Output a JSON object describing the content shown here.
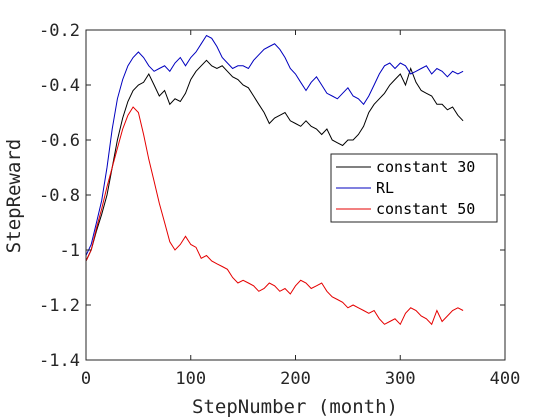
{
  "chart_data": {
    "type": "line",
    "title": "",
    "xlabel": "StepNumber (month)",
    "ylabel": "StepReward",
    "xlim": [
      0,
      400
    ],
    "ylim": [
      -1.4,
      -0.2
    ],
    "xticks": [
      0,
      100,
      200,
      300,
      400
    ],
    "yticks": [
      -1.4,
      -1.2,
      -1,
      -0.8,
      -0.6,
      -0.4,
      -0.2
    ],
    "xtick_labels": [
      "0",
      "100",
      "200",
      "300",
      "400"
    ],
    "ytick_labels": [
      "-1.4",
      "-1.2",
      "-1",
      "-0.8",
      "-0.6",
      "-0.4",
      "-0.2"
    ],
    "grid": false,
    "legend_position": "right",
    "series": [
      {
        "name": "constant 30",
        "color": "#000000",
        "x": [
          0,
          5,
          10,
          15,
          20,
          25,
          30,
          35,
          40,
          45,
          50,
          55,
          60,
          65,
          70,
          75,
          80,
          85,
          90,
          95,
          100,
          105,
          110,
          115,
          120,
          125,
          130,
          135,
          140,
          145,
          150,
          155,
          160,
          165,
          170,
          175,
          180,
          185,
          190,
          195,
          200,
          205,
          210,
          215,
          220,
          225,
          230,
          235,
          240,
          245,
          250,
          255,
          260,
          265,
          270,
          275,
          280,
          285,
          290,
          295,
          300,
          305,
          310,
          315,
          320,
          325,
          330,
          335,
          340,
          345,
          350,
          355,
          360
        ],
        "y": [
          -1.04,
          -1.0,
          -0.93,
          -0.87,
          -0.8,
          -0.7,
          -0.6,
          -0.52,
          -0.46,
          -0.42,
          -0.4,
          -0.39,
          -0.36,
          -0.4,
          -0.44,
          -0.42,
          -0.47,
          -0.45,
          -0.46,
          -0.43,
          -0.38,
          -0.35,
          -0.33,
          -0.31,
          -0.33,
          -0.34,
          -0.33,
          -0.35,
          -0.37,
          -0.38,
          -0.4,
          -0.41,
          -0.44,
          -0.47,
          -0.5,
          -0.54,
          -0.52,
          -0.51,
          -0.5,
          -0.53,
          -0.54,
          -0.55,
          -0.53,
          -0.55,
          -0.56,
          -0.58,
          -0.56,
          -0.6,
          -0.61,
          -0.62,
          -0.6,
          -0.6,
          -0.58,
          -0.55,
          -0.5,
          -0.47,
          -0.45,
          -0.43,
          -0.4,
          -0.38,
          -0.36,
          -0.4,
          -0.34,
          -0.39,
          -0.42,
          -0.43,
          -0.44,
          -0.47,
          -0.47,
          -0.49,
          -0.48,
          -0.51,
          -0.53
        ]
      },
      {
        "name": "RL",
        "color": "#0000bf",
        "x": [
          0,
          5,
          10,
          15,
          20,
          25,
          30,
          35,
          40,
          45,
          50,
          55,
          60,
          65,
          70,
          75,
          80,
          85,
          90,
          95,
          100,
          105,
          110,
          115,
          120,
          125,
          130,
          135,
          140,
          145,
          150,
          155,
          160,
          165,
          170,
          175,
          180,
          185,
          190,
          195,
          200,
          205,
          210,
          215,
          220,
          225,
          230,
          235,
          240,
          245,
          250,
          255,
          260,
          265,
          270,
          275,
          280,
          285,
          290,
          295,
          300,
          305,
          310,
          315,
          320,
          325,
          330,
          335,
          340,
          345,
          350,
          355,
          360
        ],
        "y": [
          -1.02,
          -0.98,
          -0.9,
          -0.82,
          -0.7,
          -0.56,
          -0.45,
          -0.38,
          -0.33,
          -0.3,
          -0.28,
          -0.3,
          -0.33,
          -0.35,
          -0.34,
          -0.33,
          -0.35,
          -0.32,
          -0.3,
          -0.33,
          -0.3,
          -0.28,
          -0.25,
          -0.22,
          -0.23,
          -0.26,
          -0.3,
          -0.32,
          -0.34,
          -0.33,
          -0.33,
          -0.34,
          -0.31,
          -0.29,
          -0.27,
          -0.26,
          -0.25,
          -0.27,
          -0.3,
          -0.34,
          -0.36,
          -0.39,
          -0.42,
          -0.39,
          -0.37,
          -0.4,
          -0.43,
          -0.44,
          -0.45,
          -0.43,
          -0.41,
          -0.44,
          -0.45,
          -0.47,
          -0.44,
          -0.4,
          -0.36,
          -0.33,
          -0.32,
          -0.34,
          -0.32,
          -0.33,
          -0.36,
          -0.35,
          -0.34,
          -0.33,
          -0.36,
          -0.34,
          -0.35,
          -0.37,
          -0.35,
          -0.36,
          -0.35
        ]
      },
      {
        "name": "constant 50",
        "color": "#e50000",
        "x": [
          0,
          5,
          10,
          15,
          20,
          25,
          30,
          35,
          40,
          45,
          50,
          55,
          60,
          65,
          70,
          75,
          80,
          85,
          90,
          95,
          100,
          105,
          110,
          115,
          120,
          125,
          130,
          135,
          140,
          145,
          150,
          155,
          160,
          165,
          170,
          175,
          180,
          185,
          190,
          195,
          200,
          205,
          210,
          215,
          220,
          225,
          230,
          235,
          240,
          245,
          250,
          255,
          260,
          265,
          270,
          275,
          280,
          285,
          290,
          295,
          300,
          305,
          310,
          315,
          320,
          325,
          330,
          335,
          340,
          345,
          350,
          355,
          360
        ],
        "y": [
          -1.04,
          -1.0,
          -0.92,
          -0.85,
          -0.77,
          -0.7,
          -0.63,
          -0.56,
          -0.51,
          -0.48,
          -0.5,
          -0.58,
          -0.67,
          -0.75,
          -0.83,
          -0.9,
          -0.97,
          -1.0,
          -0.98,
          -0.95,
          -0.98,
          -0.99,
          -1.03,
          -1.02,
          -1.04,
          -1.05,
          -1.06,
          -1.07,
          -1.1,
          -1.12,
          -1.11,
          -1.12,
          -1.13,
          -1.15,
          -1.14,
          -1.12,
          -1.13,
          -1.15,
          -1.14,
          -1.16,
          -1.13,
          -1.11,
          -1.12,
          -1.14,
          -1.13,
          -1.12,
          -1.15,
          -1.17,
          -1.18,
          -1.19,
          -1.21,
          -1.2,
          -1.21,
          -1.22,
          -1.23,
          -1.22,
          -1.25,
          -1.27,
          -1.26,
          -1.25,
          -1.27,
          -1.23,
          -1.21,
          -1.22,
          -1.24,
          -1.25,
          -1.27,
          -1.22,
          -1.26,
          -1.24,
          -1.22,
          -1.21,
          -1.22
        ]
      }
    ]
  }
}
